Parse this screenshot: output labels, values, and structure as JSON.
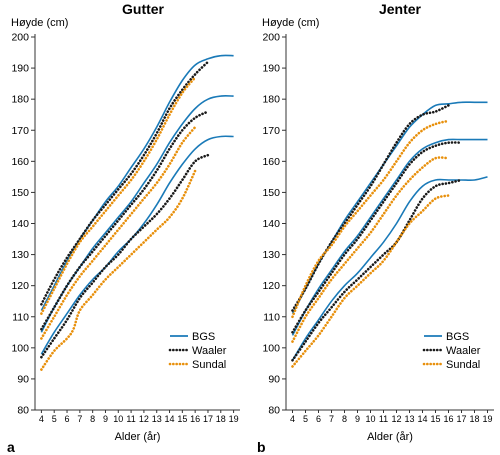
{
  "chart_data": [
    {
      "type": "line",
      "title": "Gutter",
      "panel_letter": "a",
      "ylabel": "Høyde (cm)",
      "xlabel": "Alder (år)",
      "xlim": [
        4,
        19
      ],
      "ylim": [
        80,
        200
      ],
      "x_ticks": [
        4,
        5,
        6,
        7,
        8,
        9,
        10,
        11,
        12,
        13,
        14,
        15,
        16,
        17,
        18,
        19
      ],
      "y_ticks": [
        80,
        90,
        100,
        110,
        120,
        130,
        140,
        150,
        160,
        170,
        180,
        190,
        200
      ],
      "grid": false,
      "legend_position": "bottom-right",
      "legend": [
        "BGS",
        "Waaler",
        "Sundal"
      ],
      "series": [
        {
          "name": "BGS",
          "percentile": "high",
          "style": "solid",
          "color": "#1a7ab8",
          "x": [
            4,
            5,
            6,
            7,
            8,
            9,
            10,
            11,
            12,
            13,
            14,
            15,
            16,
            17,
            18,
            19
          ],
          "values": [
            112,
            120,
            128,
            135,
            141,
            147,
            152,
            158,
            164,
            171,
            179,
            186,
            191,
            193,
            194,
            194
          ]
        },
        {
          "name": "BGS",
          "percentile": "mid",
          "style": "solid",
          "color": "#1a7ab8",
          "x": [
            4,
            5,
            6,
            7,
            8,
            9,
            10,
            11,
            12,
            13,
            14,
            15,
            16,
            17,
            18,
            19
          ],
          "values": [
            105,
            113,
            120,
            126,
            132,
            137,
            142,
            147,
            153,
            159,
            166,
            172,
            177,
            180,
            181,
            181
          ]
        },
        {
          "name": "BGS",
          "percentile": "low",
          "style": "solid",
          "color": "#1a7ab8",
          "x": [
            4,
            5,
            6,
            7,
            8,
            9,
            10,
            11,
            12,
            13,
            14,
            15,
            16,
            17,
            18,
            19
          ],
          "values": [
            98,
            105,
            111,
            117,
            122,
            126,
            131,
            135,
            140,
            146,
            153,
            159,
            164,
            167,
            168,
            168
          ]
        },
        {
          "name": "Waaler",
          "percentile": "high",
          "style": "dotted",
          "color": "#1a1a1a",
          "x": [
            4,
            5,
            6,
            7,
            8,
            9,
            10,
            11,
            12,
            13,
            14,
            15,
            16,
            17
          ],
          "values": [
            114,
            122,
            129,
            135,
            141,
            146,
            151,
            156,
            162,
            169,
            177,
            183,
            188,
            192
          ]
        },
        {
          "name": "Waaler",
          "percentile": "mid",
          "style": "dotted",
          "color": "#1a1a1a",
          "x": [
            4,
            5,
            6,
            7,
            8,
            9,
            10,
            11,
            12,
            13,
            14,
            15,
            16,
            17
          ],
          "values": [
            106,
            113,
            120,
            126,
            131,
            136,
            141,
            146,
            151,
            157,
            164,
            170,
            174,
            176
          ]
        },
        {
          "name": "Waaler",
          "percentile": "low",
          "style": "dotted",
          "color": "#1a1a1a",
          "x": [
            4,
            5,
            6,
            7,
            8,
            9,
            10,
            11,
            12,
            13,
            14,
            15,
            16,
            17
          ],
          "values": [
            97,
            103,
            109,
            116,
            121,
            126,
            130,
            135,
            139,
            143,
            148,
            154,
            160,
            162
          ]
        },
        {
          "name": "Sundal",
          "percentile": "high",
          "style": "dotted",
          "color": "#e8900c",
          "x": [
            4,
            5,
            6,
            7,
            8,
            9,
            10,
            11,
            12,
            13,
            14,
            15,
            16
          ],
          "values": [
            111,
            119,
            127,
            134,
            139,
            144,
            149,
            154,
            160,
            167,
            175,
            182,
            187
          ]
        },
        {
          "name": "Sundal",
          "percentile": "mid",
          "style": "dotted",
          "color": "#e8900c",
          "x": [
            4,
            5,
            6,
            7,
            8,
            9,
            10,
            11,
            12,
            13,
            14,
            15,
            16
          ],
          "values": [
            103,
            110,
            117,
            123,
            128,
            133,
            138,
            143,
            148,
            153,
            159,
            166,
            171
          ]
        },
        {
          "name": "Sundal",
          "percentile": "low",
          "style": "dotted",
          "color": "#e8900c",
          "x": [
            4,
            5,
            6,
            6.5,
            7,
            8,
            9,
            10,
            11,
            12,
            13,
            14,
            15,
            16
          ],
          "values": [
            93,
            99,
            103,
            106,
            112,
            117,
            122,
            126,
            130,
            134,
            138,
            142,
            148,
            157
          ]
        }
      ]
    },
    {
      "type": "line",
      "title": "Jenter",
      "panel_letter": "b",
      "ylabel": "Høyde (cm)",
      "xlabel": "Alder (år)",
      "xlim": [
        4,
        19
      ],
      "ylim": [
        80,
        200
      ],
      "x_ticks": [
        4,
        5,
        6,
        7,
        8,
        9,
        10,
        11,
        12,
        13,
        14,
        15,
        16,
        17,
        18,
        19
      ],
      "y_ticks": [
        80,
        90,
        100,
        110,
        120,
        130,
        140,
        150,
        160,
        170,
        180,
        190,
        200
      ],
      "grid": false,
      "legend_position": "bottom-right",
      "legend": [
        "BGS",
        "Waaler",
        "Sundal"
      ],
      "series": [
        {
          "name": "BGS",
          "percentile": "high",
          "style": "solid",
          "color": "#1a7ab8",
          "x": [
            4,
            5,
            6,
            7,
            8,
            9,
            10,
            11,
            12,
            13,
            14,
            15,
            16,
            17,
            18,
            19
          ],
          "values": [
            111,
            119,
            127,
            134,
            141,
            147,
            153,
            159,
            165,
            171,
            175,
            178,
            178.5,
            179,
            179,
            179
          ]
        },
        {
          "name": "BGS",
          "percentile": "mid",
          "style": "solid",
          "color": "#1a7ab8",
          "x": [
            4,
            5,
            6,
            7,
            8,
            9,
            10,
            11,
            12,
            13,
            14,
            15,
            16,
            17,
            18,
            19
          ],
          "values": [
            104,
            112,
            119,
            125,
            131,
            136,
            142,
            148,
            154,
            160,
            164,
            166,
            167,
            167,
            167,
            167
          ]
        },
        {
          "name": "BGS",
          "percentile": "low",
          "style": "solid",
          "color": "#1a7ab8",
          "x": [
            4,
            5,
            6,
            7,
            8,
            9,
            10,
            11,
            12,
            13,
            14,
            15,
            16,
            17,
            18,
            19
          ],
          "values": [
            96,
            103,
            109,
            115,
            120,
            124,
            129,
            134,
            140,
            147,
            152,
            154,
            154,
            154,
            154,
            155
          ]
        },
        {
          "name": "Waaler",
          "percentile": "high",
          "style": "dotted",
          "color": "#1a1a1a",
          "x": [
            4,
            5,
            6,
            7,
            8,
            9,
            10,
            11,
            12,
            13,
            14,
            15,
            16
          ],
          "values": [
            112,
            119,
            127,
            134,
            140,
            146,
            152,
            159,
            166,
            172,
            175,
            176,
            178
          ]
        },
        {
          "name": "Waaler",
          "percentile": "mid",
          "style": "dotted",
          "color": "#1a1a1a",
          "x": [
            4,
            5,
            6,
            7,
            8,
            9,
            10,
            11,
            12,
            13,
            14,
            15,
            16,
            17
          ],
          "values": [
            105,
            112,
            118,
            124,
            130,
            135,
            141,
            147,
            153,
            159,
            163,
            165,
            166,
            166
          ]
        },
        {
          "name": "Waaler",
          "percentile": "low",
          "style": "dotted",
          "color": "#1a1a1a",
          "x": [
            4,
            5,
            6,
            7,
            8,
            9,
            10,
            11,
            12,
            13,
            14,
            15,
            16,
            17
          ],
          "values": [
            96,
            102,
            108,
            113,
            118,
            122,
            126,
            130,
            134,
            141,
            148,
            152,
            153,
            154
          ]
        },
        {
          "name": "Sundal",
          "percentile": "high",
          "style": "dotted",
          "color": "#e8900c",
          "x": [
            4,
            5,
            6,
            7,
            8,
            9,
            10,
            11,
            12,
            13,
            14,
            15,
            16
          ],
          "values": [
            110,
            120,
            128,
            133,
            139,
            144,
            149,
            154,
            160,
            166,
            170,
            172,
            173
          ]
        },
        {
          "name": "Sundal",
          "percentile": "mid",
          "style": "dotted",
          "color": "#e8900c",
          "x": [
            4,
            5,
            6,
            7,
            8,
            9,
            10,
            11,
            12,
            13,
            14,
            15,
            16
          ],
          "values": [
            102,
            110,
            116,
            122,
            127,
            132,
            137,
            143,
            149,
            154,
            158,
            161,
            161
          ]
        },
        {
          "name": "Sundal",
          "percentile": "low",
          "style": "dotted",
          "color": "#e8900c",
          "x": [
            4,
            5,
            6,
            7,
            8,
            9,
            10,
            11,
            12,
            13,
            14,
            15,
            16
          ],
          "values": [
            94,
            99,
            104,
            110,
            116,
            120,
            124,
            128,
            134,
            140,
            144,
            148,
            149
          ]
        }
      ]
    }
  ]
}
